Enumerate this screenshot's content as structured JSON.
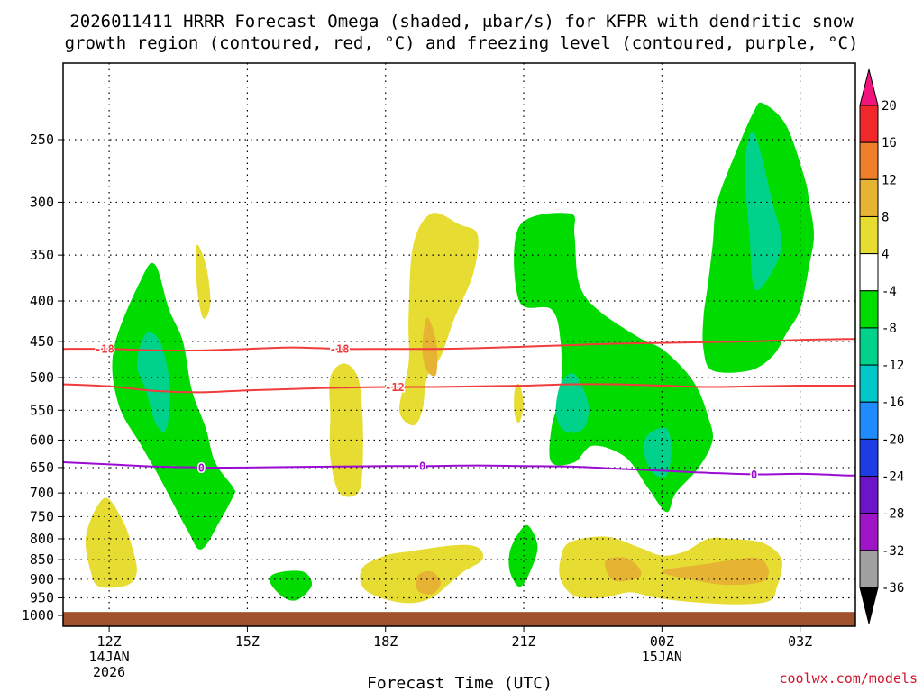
{
  "chart_data": {
    "type": "time-height cross section",
    "title_line1": "2026011411 HRRR Forecast Omega (shaded, μbar/s) for KFPR with dendritic snow",
    "title_line2": "growth region (contoured, red, °C) and freezing level (contoured, purple, °C)",
    "xlabel": "Forecast Time (UTC)",
    "ylabel": "",
    "credit": "coolwx.com/models",
    "x_units": "hours after 2026-01-14 12Z",
    "xlim": [
      -1.0,
      16.2
    ],
    "ylim_hPa": [
      1000,
      200
    ],
    "x_ticks": [
      {
        "x": 0,
        "labels": [
          "12Z",
          "14JAN",
          "2026"
        ]
      },
      {
        "x": 3,
        "labels": [
          "15Z"
        ]
      },
      {
        "x": 6,
        "labels": [
          "18Z"
        ]
      },
      {
        "x": 9,
        "labels": [
          "21Z"
        ]
      },
      {
        "x": 12,
        "labels": [
          "00Z",
          "15JAN"
        ]
      },
      {
        "x": 15,
        "labels": [
          "03Z"
        ]
      }
    ],
    "y_ticks": [
      250,
      300,
      350,
      400,
      450,
      500,
      550,
      600,
      650,
      700,
      750,
      800,
      850,
      900,
      950,
      1000
    ],
    "grid": true,
    "colorbar": {
      "position": "right",
      "levels": [
        20,
        16,
        12,
        8,
        4,
        -4,
        -8,
        -12,
        -16,
        -20,
        -24,
        -28,
        -32,
        -36
      ],
      "bands": [
        {
          "from": 16,
          "to": 20,
          "color": "#f0282c"
        },
        {
          "from": 12,
          "to": 16,
          "color": "#ef7f28"
        },
        {
          "from": 8,
          "to": 12,
          "color": "#e6b332"
        },
        {
          "from": 4,
          "to": 8,
          "color": "#e6dc32"
        },
        {
          "from": -4,
          "to": 4,
          "color": "#ffffff"
        },
        {
          "from": -8,
          "to": -4,
          "color": "#00dc00"
        },
        {
          "from": -12,
          "to": -8,
          "color": "#00d28c"
        },
        {
          "from": -16,
          "to": -12,
          "color": "#00c8c8"
        },
        {
          "from": -20,
          "to": -16,
          "color": "#1e8cff"
        },
        {
          "from": -24,
          "to": -20,
          "color": "#1e3ce6"
        },
        {
          "from": -28,
          "to": -24,
          "color": "#6e14c8"
        },
        {
          "from": -32,
          "to": -28,
          "color": "#a014c8"
        },
        {
          "from": -36,
          "to": -32,
          "color": "#a0a0a0"
        }
      ],
      "over_color": "#f0147c",
      "under_color": "#000000"
    },
    "ground": {
      "p_top": 990,
      "color": "#a0522d"
    },
    "series": [
      {
        "name": "-18 °C isotherm",
        "color": "#f03c3c",
        "label": "-18",
        "label_x": [
          -0.1,
          5.0
        ],
        "x": [
          -1.0,
          0.0,
          1.0,
          2.0,
          3.0,
          4.0,
          5.0,
          6.0,
          7.0,
          8.0,
          9.0,
          10.0,
          11.0,
          12.0,
          13.0,
          14.0,
          15.0,
          16.0,
          16.2
        ],
        "y": [
          460,
          460,
          462,
          462,
          460,
          458,
          460,
          460,
          460,
          459,
          457,
          455,
          453,
          452,
          451,
          450,
          448,
          447,
          447
        ]
      },
      {
        "name": "-12 °C isotherm",
        "color": "#f03c3c",
        "label": "-12",
        "label_x": [
          6.2
        ],
        "x": [
          -1.0,
          0.0,
          1.0,
          2.0,
          3.0,
          4.0,
          5.0,
          6.0,
          7.0,
          8.0,
          9.0,
          10.0,
          11.0,
          12.0,
          13.0,
          14.0,
          15.0,
          16.0,
          16.2
        ],
        "y": [
          510,
          513,
          520,
          522,
          519,
          517,
          515,
          514,
          514,
          513,
          512,
          510,
          510,
          512,
          514,
          513,
          512,
          512,
          512
        ]
      },
      {
        "name": "0 °C freezing level",
        "color": "#9b0bd1",
        "label": "0",
        "label_x": [
          2.0,
          6.8,
          14.0
        ],
        "x": [
          -1.0,
          0.0,
          1.0,
          2.0,
          3.0,
          4.0,
          5.0,
          6.0,
          7.0,
          8.0,
          9.0,
          10.0,
          11.0,
          12.0,
          13.0,
          14.0,
          15.0,
          16.0,
          16.2
        ],
        "y": [
          640,
          644,
          648,
          650,
          650,
          649,
          648,
          647,
          647,
          646,
          647,
          648,
          652,
          656,
          660,
          663,
          662,
          665,
          665
        ]
      }
    ],
    "shaded_regions": [
      {
        "level": "-8 to -4",
        "color": "#00dc00",
        "points": [
          [
            0.1,
            460
          ],
          [
            0.7,
            375
          ],
          [
            1.0,
            360
          ],
          [
            1.3,
            410
          ],
          [
            1.6,
            450
          ],
          [
            1.8,
            520
          ],
          [
            2.1,
            580
          ],
          [
            2.3,
            640
          ],
          [
            2.7,
            690
          ],
          [
            2.7,
            705
          ],
          [
            2.4,
            760
          ],
          [
            2.0,
            825
          ],
          [
            1.7,
            780
          ],
          [
            1.1,
            670
          ],
          [
            0.7,
            610
          ],
          [
            0.2,
            540
          ]
        ]
      },
      {
        "level": "-12 to -8",
        "color": "#00d28c",
        "points": [
          [
            0.8,
            440
          ],
          [
            1.1,
            450
          ],
          [
            1.3,
            500
          ],
          [
            1.3,
            555
          ],
          [
            1.2,
            585
          ],
          [
            1.0,
            570
          ],
          [
            0.8,
            520
          ],
          [
            0.6,
            480
          ]
        ]
      },
      {
        "level": "4 to 8",
        "color": "#e6dc32",
        "points": [
          [
            1.9,
            340
          ],
          [
            2.1,
            360
          ],
          [
            2.2,
            400
          ],
          [
            2.1,
            420
          ],
          [
            2.0,
            415
          ],
          [
            1.9,
            380
          ]
        ]
      },
      {
        "level": "4 to 8",
        "color": "#e6dc32",
        "points": [
          [
            -0.5,
            790
          ],
          [
            -0.1,
            710
          ],
          [
            0.3,
            760
          ],
          [
            0.5,
            820
          ],
          [
            0.6,
            880
          ],
          [
            0.4,
            915
          ],
          [
            -0.2,
            920
          ],
          [
            -0.4,
            880
          ]
        ]
      },
      {
        "level": "-8 to -4",
        "color": "#00dc00",
        "points": [
          [
            3.6,
            885
          ],
          [
            4.2,
            880
          ],
          [
            4.4,
            915
          ],
          [
            4.1,
            955
          ],
          [
            3.8,
            950
          ],
          [
            3.5,
            910
          ]
        ]
      },
      {
        "level": "4 to 8",
        "color": "#e6dc32",
        "points": [
          [
            4.8,
            500
          ],
          [
            5.1,
            480
          ],
          [
            5.4,
            500
          ],
          [
            5.5,
            560
          ],
          [
            5.5,
            650
          ],
          [
            5.4,
            700
          ],
          [
            5.0,
            700
          ],
          [
            4.8,
            630
          ],
          [
            4.8,
            560
          ]
        ]
      },
      {
        "level": "4 to 8",
        "color": "#e6dc32",
        "points": [
          [
            6.6,
            340
          ],
          [
            7.0,
            310
          ],
          [
            7.6,
            320
          ],
          [
            8.0,
            330
          ],
          [
            7.9,
            370
          ],
          [
            7.5,
            420
          ],
          [
            7.2,
            470
          ],
          [
            6.9,
            500
          ],
          [
            6.8,
            550
          ],
          [
            6.6,
            575
          ],
          [
            6.3,
            550
          ],
          [
            6.5,
            480
          ],
          [
            6.5,
            420
          ]
        ]
      },
      {
        "level": "8 to 12",
        "color": "#e6b332",
        "points": [
          [
            6.9,
            420
          ],
          [
            7.1,
            450
          ],
          [
            7.1,
            495
          ],
          [
            6.9,
            490
          ],
          [
            6.8,
            460
          ]
        ]
      },
      {
        "level": "4 to 8",
        "color": "#e6dc32",
        "points": [
          [
            5.5,
            870
          ],
          [
            6.0,
            840
          ],
          [
            6.5,
            830
          ],
          [
            7.5,
            815
          ],
          [
            8.0,
            820
          ],
          [
            8.1,
            850
          ],
          [
            7.7,
            880
          ],
          [
            7.4,
            910
          ],
          [
            7.0,
            950
          ],
          [
            6.5,
            965
          ],
          [
            5.9,
            950
          ],
          [
            5.5,
            920
          ]
        ]
      },
      {
        "level": "8 to 12",
        "color": "#e6b332",
        "points": [
          [
            6.7,
            890
          ],
          [
            7.0,
            880
          ],
          [
            7.2,
            910
          ],
          [
            7.0,
            940
          ],
          [
            6.7,
            930
          ]
        ]
      },
      {
        "level": "4 to 8",
        "color": "#e6dc32",
        "points": [
          [
            8.8,
            520
          ],
          [
            8.9,
            510
          ],
          [
            9.0,
            540
          ],
          [
            8.9,
            570
          ],
          [
            8.8,
            555
          ]
        ]
      },
      {
        "level": "-8 to -4",
        "color": "#00dc00",
        "points": [
          [
            8.7,
            830
          ],
          [
            8.9,
            785
          ],
          [
            9.1,
            770
          ],
          [
            9.3,
            820
          ],
          [
            9.1,
            890
          ],
          [
            8.9,
            920
          ],
          [
            8.7,
            880
          ]
        ]
      },
      {
        "level": "-8 to -4",
        "color": "#00dc00",
        "points": [
          [
            8.9,
            322
          ],
          [
            10.0,
            310
          ],
          [
            10.1,
            330
          ],
          [
            10.2,
            380
          ],
          [
            10.6,
            410
          ],
          [
            11.5,
            445
          ],
          [
            12.0,
            460
          ],
          [
            12.5,
            490
          ],
          [
            12.8,
            520
          ],
          [
            13.0,
            560
          ],
          [
            13.1,
            600
          ],
          [
            12.8,
            650
          ],
          [
            12.3,
            700
          ],
          [
            12.1,
            740
          ],
          [
            11.7,
            690
          ],
          [
            11.2,
            630
          ],
          [
            10.5,
            610
          ],
          [
            10.1,
            640
          ],
          [
            9.6,
            640
          ],
          [
            9.6,
            580
          ],
          [
            9.8,
            520
          ],
          [
            9.8,
            450
          ],
          [
            9.6,
            410
          ],
          [
            8.9,
            400
          ]
        ]
      },
      {
        "level": "-12 to -8",
        "color": "#00d28c",
        "points": [
          [
            9.8,
            510
          ],
          [
            10.1,
            495
          ],
          [
            10.4,
            540
          ],
          [
            10.3,
            580
          ],
          [
            9.9,
            585
          ],
          [
            9.7,
            555
          ]
        ]
      },
      {
        "level": "-12 to -8",
        "color": "#00d28c",
        "points": [
          [
            11.7,
            590
          ],
          [
            12.1,
            580
          ],
          [
            12.2,
            620
          ],
          [
            12.1,
            665
          ],
          [
            11.8,
            660
          ],
          [
            11.6,
            620
          ]
        ]
      },
      {
        "level": "4 to 8",
        "color": "#e6dc32",
        "points": [
          [
            9.8,
            850
          ],
          [
            10.0,
            808
          ],
          [
            10.8,
            795
          ],
          [
            11.5,
            820
          ],
          [
            12.0,
            840
          ],
          [
            12.5,
            830
          ],
          [
            13.0,
            800
          ],
          [
            13.5,
            800
          ],
          [
            14.2,
            810
          ],
          [
            14.6,
            850
          ],
          [
            14.5,
            920
          ],
          [
            14.3,
            960
          ],
          [
            13.5,
            968
          ],
          [
            12.5,
            960
          ],
          [
            11.8,
            948
          ],
          [
            11.3,
            935
          ],
          [
            10.7,
            950
          ],
          [
            10.1,
            945
          ],
          [
            9.8,
            900
          ]
        ]
      },
      {
        "level": "8 to 12",
        "color": "#e6b332",
        "points": [
          [
            10.8,
            850
          ],
          [
            11.2,
            845
          ],
          [
            11.5,
            870
          ],
          [
            11.5,
            895
          ],
          [
            11.0,
            905
          ],
          [
            10.8,
            880
          ]
        ]
      },
      {
        "level": "8 to 12",
        "color": "#e6b332",
        "points": [
          [
            12.0,
            880
          ],
          [
            13.0,
            860
          ],
          [
            14.0,
            845
          ],
          [
            14.3,
            870
          ],
          [
            14.2,
            905
          ],
          [
            13.5,
            915
          ],
          [
            12.8,
            905
          ]
        ]
      },
      {
        "level": "-8 to -4",
        "color": "#00dc00",
        "points": [
          [
            13.0,
            380
          ],
          [
            13.1,
            340
          ],
          [
            13.2,
            300
          ],
          [
            13.6,
            260
          ],
          [
            14.0,
            230
          ],
          [
            14.2,
            225
          ],
          [
            14.7,
            240
          ],
          [
            15.1,
            280
          ],
          [
            15.2,
            300
          ],
          [
            15.3,
            330
          ],
          [
            15.2,
            360
          ],
          [
            15.0,
            410
          ],
          [
            14.7,
            440
          ],
          [
            14.4,
            470
          ],
          [
            13.9,
            490
          ],
          [
            13.1,
            490
          ],
          [
            12.9,
            460
          ],
          [
            12.9,
            420
          ]
        ]
      },
      {
        "level": "-12 to -8",
        "color": "#00d28c",
        "points": [
          [
            13.8,
            270
          ],
          [
            14.0,
            245
          ],
          [
            14.4,
            300
          ],
          [
            14.6,
            340
          ],
          [
            14.3,
            375
          ],
          [
            14.0,
            385
          ],
          [
            13.9,
            330
          ]
        ]
      }
    ]
  }
}
